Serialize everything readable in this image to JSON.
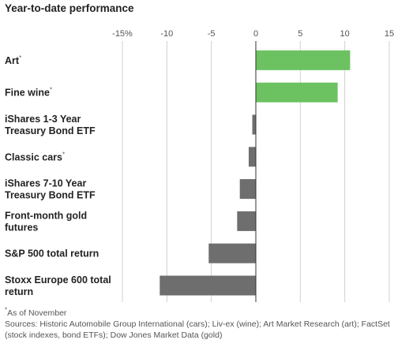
{
  "chart_data": {
    "type": "bar",
    "orientation": "horizontal",
    "title": "Year-to-date performance",
    "categories": [
      "Art*",
      "Fine wine*",
      "iShares 1-3 Year Treasury Bond ETF",
      "Classic cars*",
      "iShares 7-10 Year Treasury Bond ETF",
      "Front-month gold futures",
      "S&P 500 total return",
      "Stoxx Europe 600 total return"
    ],
    "category_lines": [
      [
        "Art"
      ],
      [
        "Fine wine"
      ],
      [
        "iShares 1-3 Year",
        "Treasury Bond ETF"
      ],
      [
        "Classic cars"
      ],
      [
        "iShares 7-10 Year",
        "Treasury Bond ETF"
      ],
      [
        "Front-month gold",
        "futures"
      ],
      [
        "S&P 500 total return"
      ],
      [
        "Stoxx Europe 600 total",
        "return"
      ]
    ],
    "footnote_marked": [
      true,
      true,
      false,
      true,
      false,
      false,
      false,
      false
    ],
    "values": [
      10.6,
      9.2,
      -0.4,
      -0.8,
      -1.8,
      -2.1,
      -5.3,
      -10.8
    ],
    "xlim": [
      -15,
      15
    ],
    "ticks": [
      -15,
      -10,
      -5,
      0,
      5,
      10,
      15
    ],
    "tick_labels": [
      "-15%",
      "-10",
      "-5",
      "0",
      "5",
      "10",
      "15"
    ],
    "xlabel": "",
    "ylabel": "",
    "grid": true,
    "colors": {
      "positive": "#6cc261",
      "negative": "#6e6e6e",
      "grid": "#d0d0d0",
      "zero_line": "#333333"
    }
  },
  "footnotes": {
    "marker": "*",
    "as_of": "As of November",
    "sources": "Sources: Historic Automobile Group International (cars); Liv-ex (wine); Art Market Research (art); FactSet (stock indexes, bond ETFs); Dow Jones Market Data (gold)"
  }
}
